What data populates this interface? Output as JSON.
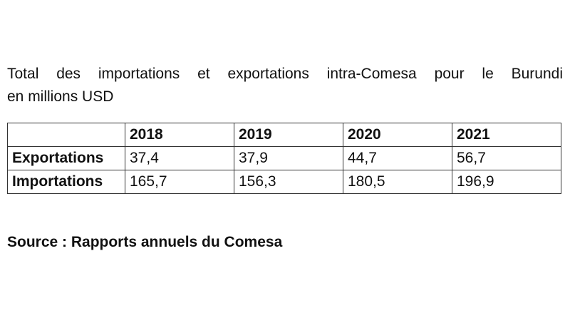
{
  "caption": {
    "line1": "Total des importations et exportations intra-Comesa pour le Burundi",
    "line2": "en millions USD"
  },
  "table": {
    "headers": [
      "",
      "2018",
      "2019",
      "2020",
      "2021"
    ],
    "rows": [
      {
        "label": "Exportations",
        "values": [
          "37,4",
          "37,9",
          "44,7",
          "56,7"
        ]
      },
      {
        "label": "Importations",
        "values": [
          "165,7",
          "156,3",
          "180,5",
          "196,9"
        ]
      }
    ]
  },
  "source": "Source : Rapports annuels du Comesa"
}
